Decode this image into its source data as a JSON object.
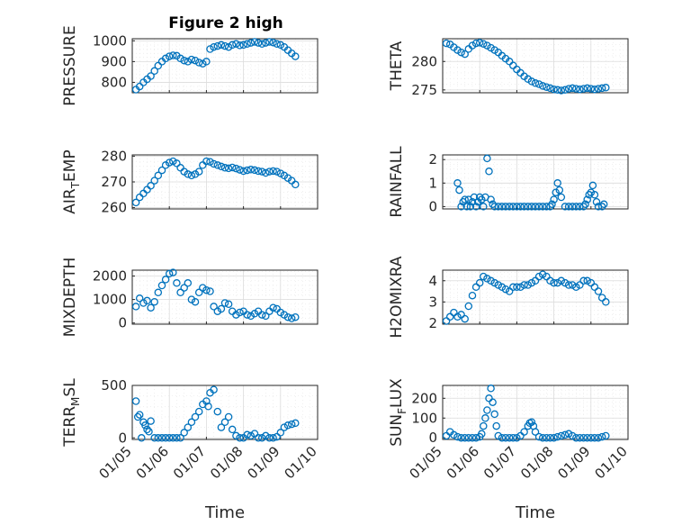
{
  "figure": {
    "title": "Figure 2 high"
  },
  "colors": {
    "series": "#0072BD",
    "axis": "#262626"
  },
  "chart_data": [
    {
      "id": "pressure",
      "type": "scatter",
      "marker": "open-circle",
      "grid": "on, minor dotted",
      "ylabel": "PRESSURE",
      "ylim": [
        750,
        1010
      ],
      "yticks": [
        800,
        900,
        1000
      ],
      "xlabel": "",
      "xtick_labels": [
        "01/05",
        "01/06",
        "01/07",
        "01/08",
        "01/09",
        "01/10"
      ],
      "x": [
        5.1,
        5.2,
        5.3,
        5.4,
        5.5,
        5.6,
        5.7,
        5.8,
        5.9,
        6.0,
        6.1,
        6.2,
        6.3,
        6.4,
        6.5,
        6.6,
        6.7,
        6.8,
        6.9,
        7.0,
        7.1,
        7.2,
        7.3,
        7.4,
        7.5,
        7.6,
        7.7,
        7.8,
        7.9,
        8.0,
        8.1,
        8.2,
        8.3,
        8.4,
        8.5,
        8.6,
        8.7,
        8.8,
        8.9,
        9.0,
        9.1,
        9.2,
        9.3,
        9.4
      ],
      "y": [
        765,
        780,
        800,
        815,
        830,
        855,
        880,
        900,
        915,
        925,
        930,
        928,
        915,
        905,
        900,
        910,
        905,
        895,
        890,
        900,
        960,
        970,
        975,
        980,
        975,
        970,
        980,
        985,
        978,
        980,
        985,
        990,
        995,
        990,
        985,
        990,
        995,
        992,
        985,
        980,
        970,
        955,
        940,
        925
      ]
    },
    {
      "id": "theta",
      "type": "scatter",
      "marker": "open-circle",
      "grid": "on, minor dotted",
      "ylabel": "THETA",
      "ylim": [
        274.5,
        284
      ],
      "yticks": [
        275,
        280
      ],
      "xlabel": "",
      "xtick_labels": [
        "01/05",
        "01/06",
        "01/07",
        "01/08",
        "01/09",
        "01/10"
      ],
      "x": [
        5.1,
        5.2,
        5.3,
        5.4,
        5.5,
        5.6,
        5.7,
        5.8,
        5.9,
        6.0,
        6.1,
        6.2,
        6.3,
        6.4,
        6.5,
        6.6,
        6.7,
        6.8,
        6.9,
        7.0,
        7.1,
        7.2,
        7.3,
        7.4,
        7.5,
        7.6,
        7.7,
        7.8,
        7.9,
        8.0,
        8.1,
        8.2,
        8.3,
        8.4,
        8.5,
        8.6,
        8.7,
        8.8,
        8.9,
        9.0,
        9.1,
        9.2,
        9.3,
        9.4
      ],
      "y": [
        283.2,
        283.0,
        282.5,
        282.0,
        281.6,
        281.3,
        282.2,
        282.8,
        283.2,
        283.3,
        283.1,
        282.8,
        282.4,
        282.0,
        281.6,
        281.0,
        280.5,
        280.0,
        279.3,
        278.6,
        278.0,
        277.4,
        276.9,
        276.5,
        276.2,
        276.0,
        275.7,
        275.5,
        275.3,
        275.1,
        275.0,
        274.9,
        275.0,
        275.2,
        275.3,
        275.2,
        275.1,
        275.2,
        275.3,
        275.2,
        275.1,
        275.2,
        275.3,
        275.4
      ]
    },
    {
      "id": "air_temp",
      "type": "scatter",
      "marker": "open-circle",
      "grid": "on, minor dotted",
      "ylabel": "AIR_TEMP",
      "ylabel_display": {
        "main": "AIR",
        "sub": "T",
        "rest": "EMP"
      },
      "ylim": [
        259.5,
        280.5
      ],
      "yticks": [
        260,
        270,
        280
      ],
      "xlabel": "",
      "xtick_labels": [
        "01/05",
        "01/06",
        "01/07",
        "01/08",
        "01/09",
        "01/10"
      ],
      "x": [
        5.1,
        5.2,
        5.3,
        5.4,
        5.5,
        5.6,
        5.7,
        5.8,
        5.9,
        6.0,
        6.1,
        6.2,
        6.3,
        6.4,
        6.5,
        6.6,
        6.7,
        6.8,
        6.9,
        7.0,
        7.1,
        7.2,
        7.3,
        7.4,
        7.5,
        7.6,
        7.7,
        7.8,
        7.9,
        8.0,
        8.1,
        8.2,
        8.3,
        8.4,
        8.5,
        8.6,
        8.7,
        8.8,
        8.9,
        9.0,
        9.1,
        9.2,
        9.3,
        9.4
      ],
      "y": [
        262,
        264,
        265.5,
        267,
        268.5,
        270.5,
        272.5,
        274.5,
        276.5,
        277.5,
        278,
        277.2,
        275.5,
        274,
        273,
        272.5,
        273,
        274,
        276.5,
        278,
        277.8,
        277,
        276.5,
        276,
        275.5,
        275.3,
        275.6,
        275.2,
        274.7,
        274.2,
        274.5,
        274.8,
        274.6,
        274.2,
        274,
        273.5,
        274,
        274.2,
        274,
        273.3,
        272.5,
        271.5,
        270.5,
        269
      ]
    },
    {
      "id": "rainfall",
      "type": "scatter",
      "marker": "open-circle",
      "grid": "on, minor dotted",
      "ylabel": "RAINFALL",
      "ylim": [
        -0.1,
        2.2
      ],
      "yticks": [
        0,
        1,
        2
      ],
      "xlabel": "",
      "xtick_labels": [
        "01/05",
        "01/06",
        "01/07",
        "01/08",
        "01/09",
        "01/10"
      ],
      "x": [
        5.4,
        5.45,
        5.5,
        5.55,
        5.6,
        5.65,
        5.7,
        5.75,
        5.8,
        5.85,
        5.9,
        5.95,
        6.0,
        6.05,
        6.1,
        6.15,
        6.2,
        6.25,
        6.3,
        6.35,
        6.4,
        6.5,
        6.6,
        6.7,
        6.8,
        6.9,
        7.0,
        7.1,
        7.2,
        7.3,
        7.4,
        7.5,
        7.6,
        7.7,
        7.8,
        7.9,
        7.95,
        8.0,
        8.05,
        8.1,
        8.15,
        8.2,
        8.3,
        8.4,
        8.5,
        8.6,
        8.7,
        8.8,
        8.85,
        8.9,
        8.95,
        9.0,
        9.05,
        9.1,
        9.15,
        9.2,
        9.3,
        9.35
      ],
      "y": [
        1.0,
        0.7,
        0.0,
        0.2,
        0.3,
        0.0,
        0.3,
        0.0,
        0.2,
        0.4,
        0.0,
        0.2,
        0.4,
        0.3,
        0.0,
        0.4,
        2.05,
        1.5,
        0.3,
        0.1,
        0.0,
        0.0,
        0.0,
        0.0,
        0.0,
        0.0,
        0.0,
        0.0,
        0.0,
        0.0,
        0.0,
        0.0,
        0.0,
        0.0,
        0.0,
        0.0,
        0.1,
        0.3,
        0.6,
        1.0,
        0.7,
        0.4,
        0.0,
        0.0,
        0.0,
        0.0,
        0.0,
        0.0,
        0.1,
        0.3,
        0.5,
        0.6,
        0.9,
        0.5,
        0.2,
        0.0,
        0.0,
        0.1
      ]
    },
    {
      "id": "mixdepth",
      "type": "scatter",
      "marker": "open-circle",
      "grid": "on, minor dotted",
      "ylabel": "MIXDEPTH",
      "ylim": [
        -50,
        2250
      ],
      "yticks": [
        0,
        1000,
        2000
      ],
      "xlabel": "",
      "xtick_labels": [
        "01/05",
        "01/06",
        "01/07",
        "01/08",
        "01/09",
        "01/10"
      ],
      "x": [
        5.1,
        5.2,
        5.3,
        5.4,
        5.5,
        5.6,
        5.7,
        5.8,
        5.9,
        6.0,
        6.1,
        6.2,
        6.3,
        6.4,
        6.5,
        6.6,
        6.7,
        6.8,
        6.9,
        7.0,
        7.1,
        7.2,
        7.3,
        7.4,
        7.5,
        7.6,
        7.7,
        7.8,
        7.9,
        8.0,
        8.1,
        8.2,
        8.3,
        8.4,
        8.5,
        8.6,
        8.7,
        8.8,
        8.9,
        9.0,
        9.1,
        9.2,
        9.3,
        9.4
      ],
      "y": [
        700,
        1050,
        850,
        950,
        650,
        900,
        1300,
        1600,
        1850,
        2100,
        2150,
        1700,
        1300,
        1500,
        1700,
        1000,
        900,
        1300,
        1500,
        1400,
        1350,
        700,
        500,
        600,
        850,
        800,
        500,
        350,
        450,
        500,
        350,
        300,
        400,
        500,
        350,
        300,
        500,
        650,
        600,
        450,
        350,
        250,
        200,
        250
      ]
    },
    {
      "id": "h2omixra",
      "type": "scatter",
      "marker": "open-circle",
      "grid": "on, minor dotted",
      "ylabel": "H2OMIXRA",
      "ylim": [
        1.95,
        4.5
      ],
      "yticks": [
        2,
        3,
        4
      ],
      "xlabel": "",
      "xtick_labels": [
        "01/05",
        "01/06",
        "01/07",
        "01/08",
        "01/09",
        "01/10"
      ],
      "x": [
        5.1,
        5.2,
        5.3,
        5.4,
        5.5,
        5.6,
        5.7,
        5.8,
        5.9,
        6.0,
        6.1,
        6.2,
        6.3,
        6.4,
        6.5,
        6.6,
        6.7,
        6.8,
        6.9,
        7.0,
        7.1,
        7.2,
        7.3,
        7.4,
        7.5,
        7.6,
        7.7,
        7.8,
        7.9,
        8.0,
        8.1,
        8.2,
        8.3,
        8.4,
        8.5,
        8.6,
        8.7,
        8.8,
        8.9,
        9.0,
        9.1,
        9.2,
        9.3,
        9.4
      ],
      "y": [
        2.1,
        2.3,
        2.5,
        2.3,
        2.4,
        2.2,
        2.8,
        3.3,
        3.7,
        3.9,
        4.2,
        4.1,
        4.0,
        3.9,
        3.8,
        3.7,
        3.6,
        3.5,
        3.7,
        3.7,
        3.7,
        3.8,
        3.8,
        3.9,
        4.0,
        4.2,
        4.3,
        4.2,
        4.0,
        3.9,
        3.9,
        4.0,
        3.9,
        3.8,
        3.8,
        3.7,
        3.8,
        4.0,
        4.0,
        3.9,
        3.7,
        3.5,
        3.2,
        3.0
      ]
    },
    {
      "id": "terr_msl",
      "type": "scatter",
      "marker": "open-circle",
      "grid": "on, minor dotted",
      "ylabel": "TERR_MSL",
      "ylabel_display": {
        "main": "TERR",
        "sub": "M",
        "rest": "SL"
      },
      "ylim": [
        -15,
        500
      ],
      "yticks": [
        0,
        500
      ],
      "xlabel": "Time",
      "xtick_labels": [
        "01/05",
        "01/06",
        "01/07",
        "01/08",
        "01/09",
        "01/10"
      ],
      "x": [
        5.1,
        5.15,
        5.2,
        5.25,
        5.3,
        5.35,
        5.4,
        5.45,
        5.5,
        5.6,
        5.7,
        5.8,
        5.9,
        6.0,
        6.1,
        6.2,
        6.3,
        6.4,
        6.5,
        6.6,
        6.7,
        6.8,
        6.9,
        7.0,
        7.05,
        7.1,
        7.2,
        7.3,
        7.4,
        7.5,
        7.6,
        7.7,
        7.8,
        7.9,
        8.0,
        8.1,
        8.2,
        8.3,
        8.4,
        8.5,
        8.6,
        8.7,
        8.8,
        8.9,
        9.0,
        9.1,
        9.2,
        9.3,
        9.4
      ],
      "y": [
        350,
        200,
        220,
        0,
        150,
        120,
        80,
        60,
        160,
        0,
        0,
        0,
        0,
        0,
        0,
        0,
        0,
        50,
        100,
        150,
        200,
        250,
        320,
        350,
        300,
        430,
        460,
        250,
        100,
        150,
        200,
        80,
        20,
        0,
        0,
        30,
        20,
        40,
        0,
        0,
        20,
        0,
        0,
        10,
        50,
        100,
        120,
        130,
        140
      ]
    },
    {
      "id": "sun_flux",
      "type": "scatter",
      "marker": "open-circle",
      "grid": "on, minor dotted",
      "ylabel": "SUN_FLUX",
      "ylabel_display": {
        "main": "SUN",
        "sub": "F",
        "rest": "LUX"
      },
      "ylim": [
        -8,
        265
      ],
      "yticks": [
        0,
        100,
        200
      ],
      "xlabel": "Time",
      "xtick_labels": [
        "01/05",
        "01/06",
        "01/07",
        "01/08",
        "01/09",
        "01/10"
      ],
      "x": [
        5.1,
        5.2,
        5.3,
        5.4,
        5.5,
        5.6,
        5.7,
        5.8,
        5.9,
        6.0,
        6.05,
        6.1,
        6.15,
        6.2,
        6.25,
        6.3,
        6.35,
        6.4,
        6.45,
        6.5,
        6.6,
        6.7,
        6.8,
        6.9,
        7.0,
        7.1,
        7.2,
        7.3,
        7.35,
        7.4,
        7.45,
        7.5,
        7.6,
        7.7,
        7.8,
        7.9,
        8.0,
        8.1,
        8.2,
        8.3,
        8.4,
        8.5,
        8.6,
        8.7,
        8.8,
        8.9,
        9.0,
        9.1,
        9.2,
        9.3,
        9.4
      ],
      "y": [
        10,
        30,
        15,
        5,
        0,
        0,
        0,
        0,
        0,
        5,
        20,
        60,
        100,
        140,
        200,
        250,
        180,
        120,
        60,
        10,
        0,
        0,
        0,
        0,
        0,
        10,
        30,
        60,
        75,
        80,
        60,
        30,
        5,
        0,
        0,
        0,
        0,
        5,
        10,
        15,
        20,
        10,
        0,
        0,
        0,
        0,
        0,
        0,
        0,
        5,
        10
      ]
    }
  ]
}
